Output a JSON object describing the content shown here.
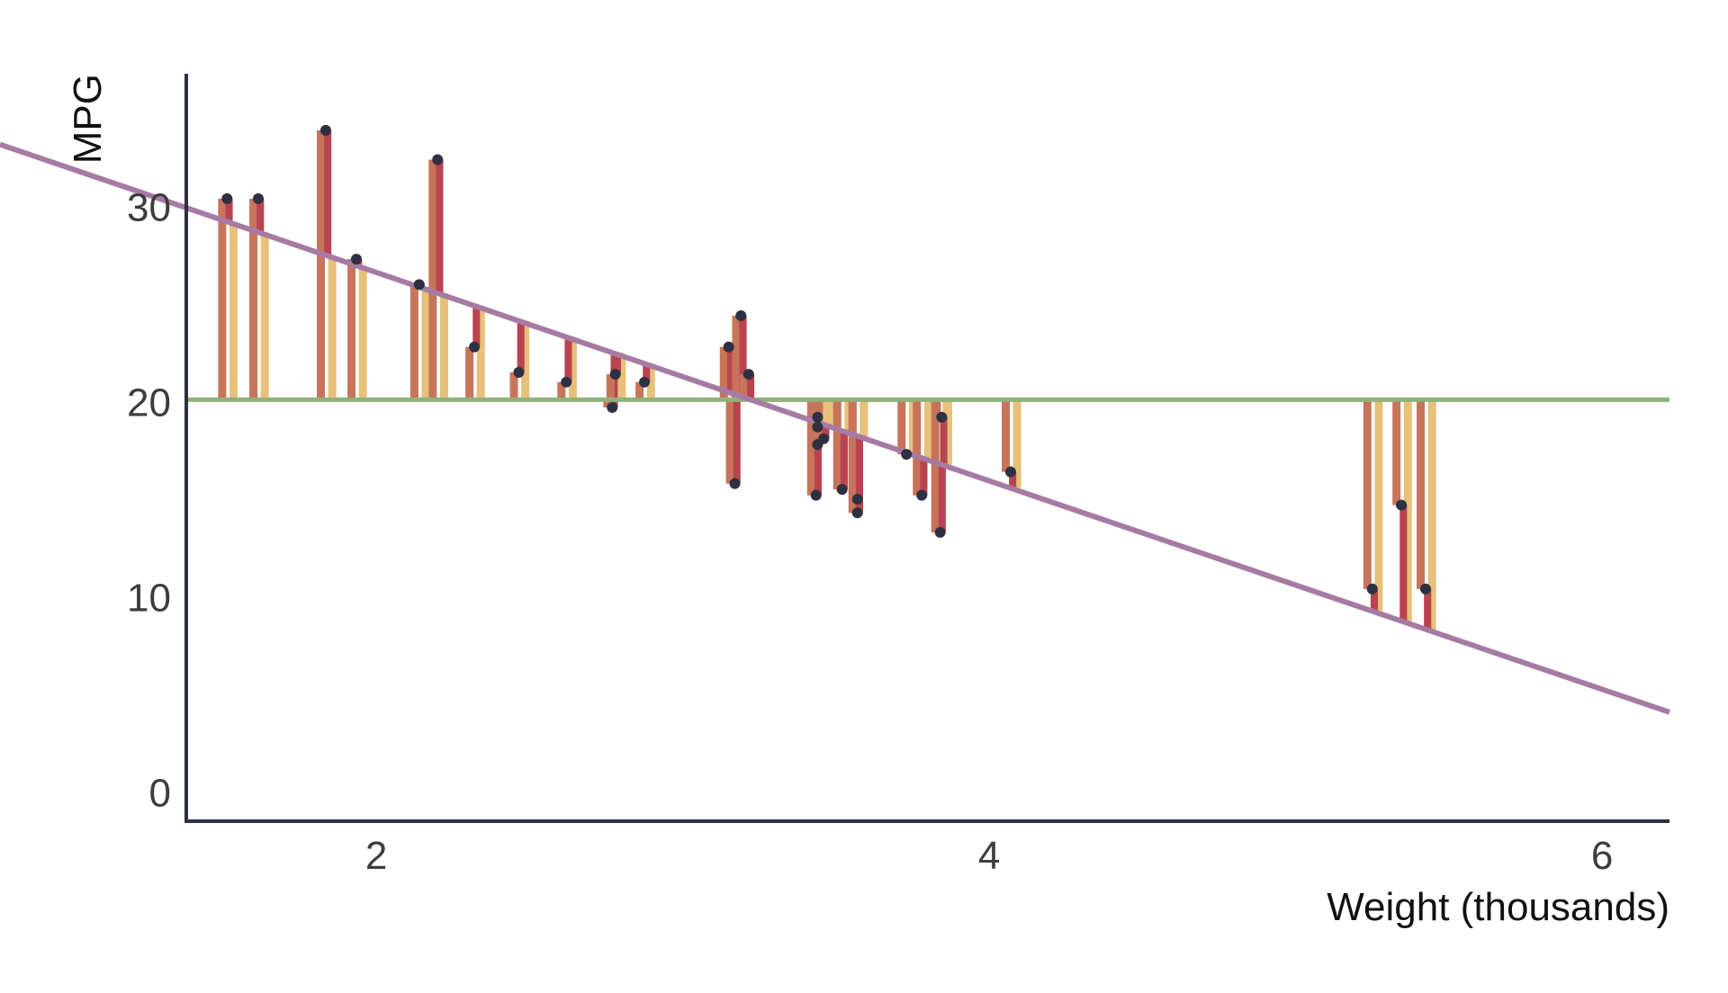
{
  "chart_data": {
    "type": "scatter",
    "title": "",
    "xlabel": "Weight (thousands)",
    "ylabel": "MPG",
    "xlim": [
      1.38,
      6.22
    ],
    "ylim": [
      -1.5,
      36.8
    ],
    "x_ticks": [
      {
        "value": 2,
        "label": "2"
      },
      {
        "value": 4,
        "label": "4"
      },
      {
        "value": 6,
        "label": "6"
      }
    ],
    "y_ticks": [
      {
        "value": 0,
        "label": "0"
      },
      {
        "value": 10,
        "label": "10"
      },
      {
        "value": 20,
        "label": "20"
      },
      {
        "value": 30,
        "label": "30"
      }
    ],
    "grid": false,
    "mean_mpg": 20.1,
    "regression": {
      "intercept": 37.3,
      "slope": -5.34
    },
    "colors": {
      "axis": "#2d3142",
      "points": "#2d3142",
      "regression_line": "#a67ba3",
      "mean_line": "#8fb27a",
      "total_deviation_bar": "#c8745a",
      "explained_bar": "#e7c17a",
      "residual_bar": "#b9444f"
    },
    "points": [
      {
        "x": 1.513,
        "y": 30.4
      },
      {
        "x": 1.615,
        "y": 30.4
      },
      {
        "x": 1.835,
        "y": 33.9
      },
      {
        "x": 1.935,
        "y": 27.3
      },
      {
        "x": 2.14,
        "y": 26.0
      },
      {
        "x": 2.2,
        "y": 32.4
      },
      {
        "x": 2.32,
        "y": 22.8
      },
      {
        "x": 2.465,
        "y": 21.5
      },
      {
        "x": 2.62,
        "y": 21.0
      },
      {
        "x": 2.77,
        "y": 19.7
      },
      {
        "x": 2.78,
        "y": 21.4
      },
      {
        "x": 2.875,
        "y": 21.0
      },
      {
        "x": 3.15,
        "y": 22.8
      },
      {
        "x": 3.17,
        "y": 15.8
      },
      {
        "x": 3.19,
        "y": 24.4
      },
      {
        "x": 3.215,
        "y": 21.4
      },
      {
        "x": 3.435,
        "y": 15.2
      },
      {
        "x": 3.44,
        "y": 19.2
      },
      {
        "x": 3.44,
        "y": 17.8
      },
      {
        "x": 3.44,
        "y": 18.7
      },
      {
        "x": 3.46,
        "y": 18.1
      },
      {
        "x": 3.52,
        "y": 15.5
      },
      {
        "x": 3.57,
        "y": 15.0
      },
      {
        "x": 3.57,
        "y": 14.3
      },
      {
        "x": 3.73,
        "y": 17.3
      },
      {
        "x": 3.78,
        "y": 15.2
      },
      {
        "x": 3.84,
        "y": 13.3
      },
      {
        "x": 3.845,
        "y": 19.2
      },
      {
        "x": 4.07,
        "y": 16.4
      },
      {
        "x": 5.25,
        "y": 10.4
      },
      {
        "x": 5.345,
        "y": 14.7
      },
      {
        "x": 5.424,
        "y": 10.4
      }
    ]
  }
}
